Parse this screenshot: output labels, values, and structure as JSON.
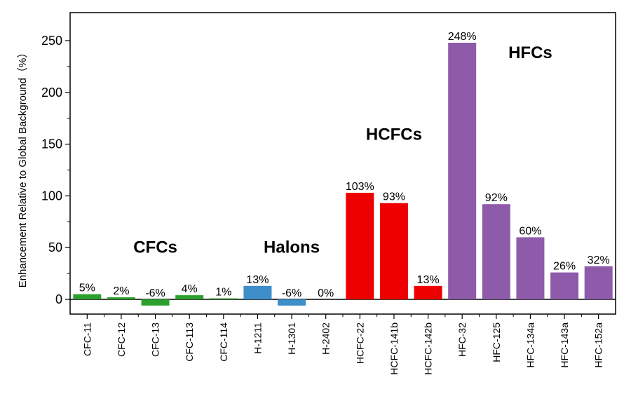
{
  "chart_data": {
    "type": "bar",
    "ylabel": "Enhancement Relative to Global Background（%）",
    "xlabel": "",
    "ylim": [
      -15,
      275
    ],
    "yticks": [
      0,
      50,
      100,
      150,
      200,
      250
    ],
    "grid": false,
    "categories": [
      "CFC-11",
      "CFC-12",
      "CFC-13",
      "CFC-113",
      "CFC-114",
      "H-1211",
      "H-1301",
      "H-2402",
      "HCFC-22",
      "HCFC-141b",
      "HCFC-142b",
      "HFC-32",
      "HFC-125",
      "HFC-134a",
      "HFC-143a",
      "HFC-152a"
    ],
    "values": [
      5,
      2,
      -6,
      4,
      1,
      13,
      -6,
      0,
      103,
      93,
      13,
      248,
      92,
      60,
      26,
      32
    ],
    "data_labels": [
      "5%",
      "2%",
      "-6%",
      "4%",
      "1%",
      "13%",
      "-6%",
      "0%",
      "103%",
      "93%",
      "13%",
      "248%",
      "92%",
      "60%",
      "26%",
      "32%"
    ],
    "groups": [
      {
        "name": "CFCs",
        "color": "#2ca02c",
        "members": [
          0,
          1,
          2,
          3,
          4
        ],
        "label_value": 45
      },
      {
        "name": "Halons",
        "color": "#3d8ec9",
        "members": [
          5,
          6,
          7
        ],
        "label_value": 45
      },
      {
        "name": "HCFCs",
        "color": "#ee0000",
        "members": [
          8,
          9,
          10
        ],
        "label_value": 154
      },
      {
        "name": "HFCs",
        "color": "#8e5bab",
        "members": [
          11,
          12,
          13,
          14,
          15
        ],
        "label_value": 233
      }
    ]
  }
}
